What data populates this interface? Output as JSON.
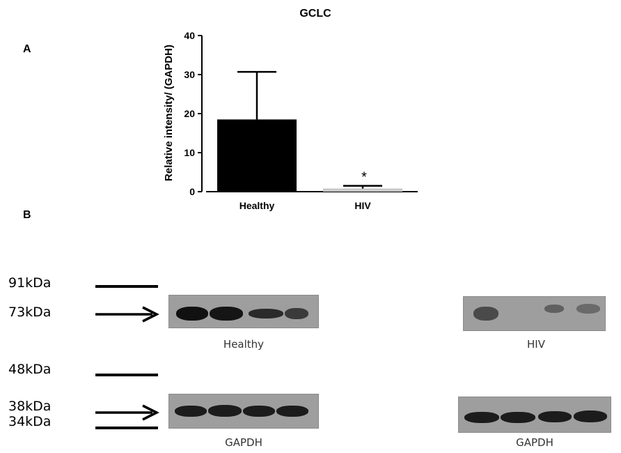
{
  "panels": {
    "a": "A",
    "b": "B"
  },
  "chart_data": {
    "type": "bar",
    "title": "GCLC",
    "xlabel": "",
    "ylabel": "Relative intensity/ (GAPDH)",
    "categories": [
      "Healthy",
      "HIV"
    ],
    "values": [
      18.5,
      0.8
    ],
    "error": [
      12.2,
      0.7
    ],
    "bar_colors": [
      "#000000",
      "#c8c8c8"
    ],
    "ylim": [
      0,
      40
    ],
    "yticks": [
      0,
      10,
      20,
      30,
      40
    ],
    "annotations": [
      {
        "category": "HIV",
        "text": "*"
      }
    ],
    "grid": false
  },
  "blot": {
    "markers": [
      "91kDa",
      "73kDa",
      "48kDa",
      "38kDa",
      "34kDa"
    ],
    "captions": {
      "healthy_gclc": "Healthy",
      "hiv_gclc": "HIV",
      "healthy_gapdh": "GAPDH",
      "hiv_gapdh": "GAPDH"
    },
    "colors": {
      "membrane": "#9e9e9e",
      "band": "#1a1a1a"
    }
  }
}
